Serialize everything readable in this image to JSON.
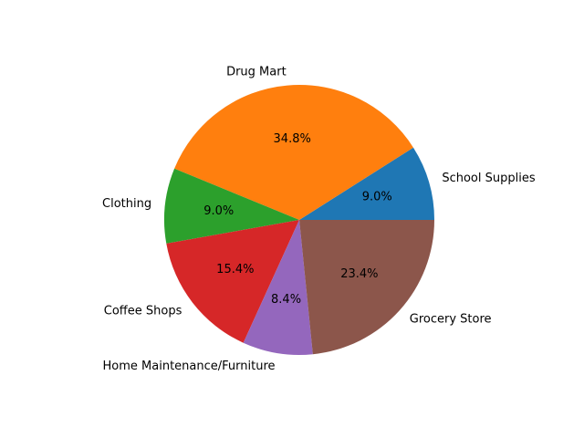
{
  "chart_data": {
    "type": "pie",
    "title": "",
    "start_angle_deg": 0,
    "direction": "counterclockwise",
    "slices": [
      {
        "label": "School Supplies",
        "percent": 9.0,
        "pct_text": "9.0%",
        "color": "#1f77b4"
      },
      {
        "label": "Drug Mart",
        "percent": 34.8,
        "pct_text": "34.8%",
        "color": "#ff7f0e"
      },
      {
        "label": "Clothing",
        "percent": 9.0,
        "pct_text": "9.0%",
        "color": "#2ca02c"
      },
      {
        "label": "Coffee Shops",
        "percent": 15.4,
        "pct_text": "15.4%",
        "color": "#d62728"
      },
      {
        "label": "Home Maintenance/Furniture",
        "percent": 8.4,
        "pct_text": "8.4%",
        "color": "#9467bd"
      },
      {
        "label": "Grocery Store",
        "percent": 23.4,
        "pct_text": "23.4%",
        "color": "#8c564b"
      }
    ]
  }
}
